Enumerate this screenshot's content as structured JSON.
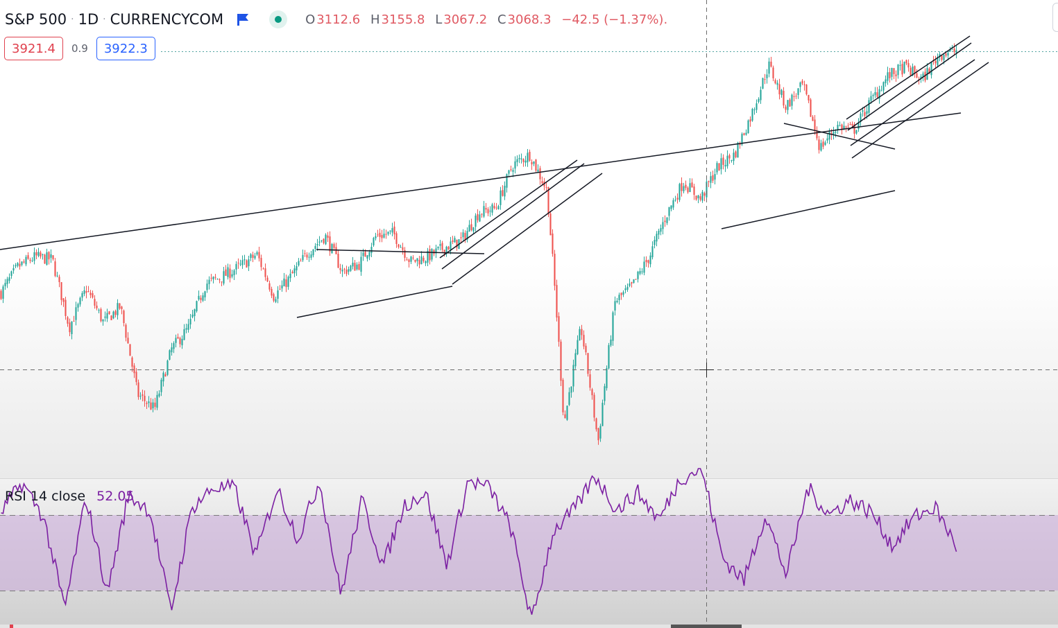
{
  "header": {
    "symbol": "S&P 500",
    "interval": "1D",
    "source": "CURRENCYCOM",
    "ohlc": {
      "open_key": "O",
      "open": "3112.6",
      "high_key": "H",
      "high": "3155.8",
      "low_key": "L",
      "low": "3067.2",
      "close_key": "C",
      "close": "3068.3",
      "change": "−42.5 (−1.37%)."
    },
    "flag_icon": "flag-icon",
    "live_icon": "market-open-dot-icon"
  },
  "quote": {
    "sell": "3921.4",
    "spread": "0.9",
    "buy": "3922.3"
  },
  "rsi": {
    "label": "RSI",
    "params": "14 close",
    "value": "52.05",
    "upper_band": 70,
    "lower_band": 30
  },
  "colors": {
    "up": "#26a69a",
    "down": "#ef5350",
    "rsi_line": "#7b1fa2",
    "rsi_band": "#ce93d8",
    "sell": "#e0414e",
    "buy": "#2962ff",
    "trendline": "#131722"
  },
  "chart_data": {
    "type": "candlestick",
    "symbol": "S&P 500",
    "interval": "1D",
    "y_scale": "log",
    "ylim": [
      2150,
      4050
    ],
    "grid": false,
    "crosshair": true,
    "close_path_keypoints": {
      "label": "approximate daily close path (index points), left to right",
      "values": [
        2775,
        2880,
        2920,
        2910,
        2640,
        2790,
        2660,
        2720,
        2400,
        2350,
        2560,
        2640,
        2810,
        2840,
        2880,
        2930,
        2760,
        2840,
        2940,
        3010,
        2860,
        2890,
        3010,
        3020,
        2900,
        2920,
        2960,
        2990,
        3110,
        3130,
        3330,
        3380,
        3210,
        2300,
        2640,
        2240,
        2740,
        2800,
        2920,
        3100,
        3250,
        3170,
        3320,
        3380,
        3580,
        3840,
        3620,
        3730,
        3410,
        3520,
        3500,
        3650,
        3780,
        3830,
        3760,
        3900,
        3920
      ]
    },
    "rsi_keypoints": {
      "label": "RSI 14 close",
      "ylim": [
        20,
        80
      ],
      "values": [
        66,
        78,
        64,
        26,
        72,
        33,
        73,
        67,
        25,
        68,
        76,
        76,
        48,
        76,
        55,
        79,
        32,
        71,
        44,
        69,
        74,
        44,
        79,
        76,
        60,
        21,
        58,
        67,
        81,
        67,
        74,
        63,
        80,
        84,
        47,
        38,
        65,
        40,
        76,
        65,
        71,
        66,
        52,
        64,
        68,
        52
      ]
    },
    "price_lines": {
      "quote_level": 3921.4,
      "crosshair_level": 2600
    }
  }
}
